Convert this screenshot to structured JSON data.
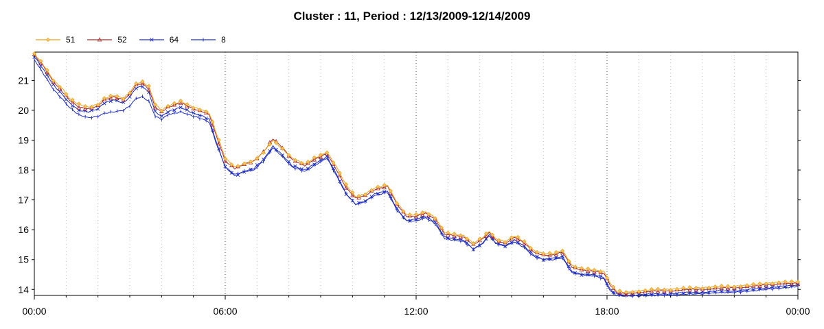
{
  "chart_data": {
    "type": "line",
    "title": "Cluster : 11, Period : 12/13/2009-12/14/2009",
    "xlabel": "",
    "ylabel": "",
    "x_ticks": [
      "00:00",
      "06:00",
      "12:00",
      "18:00",
      "00:00"
    ],
    "y_ticks": [
      "14",
      "15",
      "16",
      "17",
      "18",
      "19",
      "20",
      "21"
    ],
    "xlim": [
      "12/13/2009 00:00",
      "12/14/2009 00:00"
    ],
    "ylim": [
      13.8,
      21.95
    ],
    "grid": {
      "major_x_every_hours": 6,
      "minor_x_every_hours": 1,
      "horizontal": false
    },
    "legend": "top-left",
    "x_unit": "hours since 12/13/2009 00:00",
    "series": [
      {
        "name": "51",
        "color": "#E8A21F",
        "marker": "diamond",
        "points": [
          [
            0,
            21.9
          ],
          [
            0.3,
            21.5
          ],
          [
            0.6,
            21.0
          ],
          [
            0.9,
            20.7
          ],
          [
            1.1,
            20.4
          ],
          [
            1.4,
            20.2
          ],
          [
            1.7,
            20.1
          ],
          [
            2.0,
            20.2
          ],
          [
            2.2,
            20.4
          ],
          [
            2.5,
            20.5
          ],
          [
            2.8,
            20.4
          ],
          [
            3.0,
            20.6
          ],
          [
            3.2,
            20.9
          ],
          [
            3.4,
            20.95
          ],
          [
            3.6,
            20.8
          ],
          [
            3.8,
            20.2
          ],
          [
            4.0,
            20.0
          ],
          [
            4.2,
            20.15
          ],
          [
            4.6,
            20.3
          ],
          [
            5.0,
            20.1
          ],
          [
            5.3,
            20.0
          ],
          [
            5.5,
            19.9
          ],
          [
            5.7,
            19.3
          ],
          [
            6.0,
            18.4
          ],
          [
            6.3,
            18.1
          ],
          [
            6.6,
            18.2
          ],
          [
            6.9,
            18.3
          ],
          [
            7.2,
            18.6
          ],
          [
            7.5,
            19.0
          ],
          [
            7.8,
            18.7
          ],
          [
            8.1,
            18.4
          ],
          [
            8.5,
            18.2
          ],
          [
            8.8,
            18.4
          ],
          [
            9.2,
            18.6
          ],
          [
            9.5,
            18.1
          ],
          [
            9.8,
            17.5
          ],
          [
            10.1,
            17.1
          ],
          [
            10.4,
            17.2
          ],
          [
            10.7,
            17.4
          ],
          [
            11.1,
            17.5
          ],
          [
            11.4,
            16.9
          ],
          [
            11.7,
            16.5
          ],
          [
            12.0,
            16.5
          ],
          [
            12.3,
            16.6
          ],
          [
            12.6,
            16.4
          ],
          [
            12.9,
            15.9
          ],
          [
            13.2,
            15.85
          ],
          [
            13.5,
            15.8
          ],
          [
            13.8,
            15.55
          ],
          [
            14.1,
            15.75
          ],
          [
            14.3,
            15.95
          ],
          [
            14.5,
            15.7
          ],
          [
            14.8,
            15.6
          ],
          [
            15.1,
            15.8
          ],
          [
            15.4,
            15.6
          ],
          [
            15.7,
            15.3
          ],
          [
            16.0,
            15.2
          ],
          [
            16.3,
            15.2
          ],
          [
            16.6,
            15.3
          ],
          [
            16.9,
            14.8
          ],
          [
            17.2,
            14.7
          ],
          [
            17.6,
            14.65
          ],
          [
            17.9,
            14.6
          ],
          [
            18.1,
            14.2
          ],
          [
            18.3,
            13.95
          ],
          [
            18.6,
            13.9
          ],
          [
            19.0,
            13.95
          ],
          [
            19.5,
            14.0
          ],
          [
            20.0,
            14.0
          ],
          [
            20.5,
            14.05
          ],
          [
            21.0,
            14.05
          ],
          [
            21.5,
            14.1
          ],
          [
            22.0,
            14.1
          ],
          [
            22.5,
            14.15
          ],
          [
            23.0,
            14.2
          ],
          [
            23.5,
            14.25
          ],
          [
            24.0,
            14.25
          ]
        ]
      },
      {
        "name": "52",
        "color": "#A52A2A",
        "marker": "triangle",
        "points": [
          [
            0,
            21.85
          ],
          [
            0.3,
            21.45
          ],
          [
            0.6,
            20.95
          ],
          [
            0.9,
            20.6
          ],
          [
            1.1,
            20.35
          ],
          [
            1.4,
            20.1
          ],
          [
            1.7,
            20.05
          ],
          [
            2.0,
            20.15
          ],
          [
            2.2,
            20.35
          ],
          [
            2.5,
            20.45
          ],
          [
            2.8,
            20.35
          ],
          [
            3.0,
            20.55
          ],
          [
            3.2,
            20.85
          ],
          [
            3.4,
            20.9
          ],
          [
            3.6,
            20.7
          ],
          [
            3.8,
            20.1
          ],
          [
            4.0,
            19.95
          ],
          [
            4.2,
            20.1
          ],
          [
            4.6,
            20.25
          ],
          [
            5.0,
            20.05
          ],
          [
            5.3,
            19.95
          ],
          [
            5.5,
            19.85
          ],
          [
            5.7,
            19.2
          ],
          [
            6.0,
            18.3
          ],
          [
            6.3,
            18.05
          ],
          [
            6.6,
            18.2
          ],
          [
            6.9,
            18.3
          ],
          [
            7.2,
            18.6
          ],
          [
            7.5,
            19.05
          ],
          [
            7.8,
            18.75
          ],
          [
            8.1,
            18.35
          ],
          [
            8.5,
            18.15
          ],
          [
            8.8,
            18.35
          ],
          [
            9.2,
            18.55
          ],
          [
            9.5,
            18.0
          ],
          [
            9.8,
            17.4
          ],
          [
            10.1,
            17.05
          ],
          [
            10.4,
            17.15
          ],
          [
            10.7,
            17.35
          ],
          [
            11.1,
            17.45
          ],
          [
            11.4,
            16.85
          ],
          [
            11.7,
            16.45
          ],
          [
            12.0,
            16.45
          ],
          [
            12.3,
            16.55
          ],
          [
            12.6,
            16.35
          ],
          [
            12.9,
            15.85
          ],
          [
            13.2,
            15.8
          ],
          [
            13.5,
            15.75
          ],
          [
            13.8,
            15.5
          ],
          [
            14.1,
            15.7
          ],
          [
            14.3,
            15.9
          ],
          [
            14.5,
            15.65
          ],
          [
            14.8,
            15.55
          ],
          [
            15.1,
            15.75
          ],
          [
            15.4,
            15.55
          ],
          [
            15.7,
            15.25
          ],
          [
            16.0,
            15.15
          ],
          [
            16.3,
            15.15
          ],
          [
            16.6,
            15.25
          ],
          [
            16.9,
            14.75
          ],
          [
            17.2,
            14.65
          ],
          [
            17.6,
            14.6
          ],
          [
            17.9,
            14.55
          ],
          [
            18.1,
            14.15
          ],
          [
            18.3,
            13.9
          ],
          [
            18.6,
            13.85
          ],
          [
            19.0,
            13.9
          ],
          [
            19.5,
            13.95
          ],
          [
            20.0,
            13.95
          ],
          [
            20.5,
            14.0
          ],
          [
            21.0,
            14.0
          ],
          [
            21.5,
            14.05
          ],
          [
            22.0,
            14.05
          ],
          [
            22.5,
            14.1
          ],
          [
            23.0,
            14.15
          ],
          [
            23.5,
            14.2
          ],
          [
            24.0,
            14.2
          ]
        ]
      },
      {
        "name": "64",
        "color": "#1E2DBE",
        "marker": "x",
        "points": [
          [
            0,
            21.8
          ],
          [
            0.3,
            21.35
          ],
          [
            0.6,
            20.85
          ],
          [
            0.9,
            20.5
          ],
          [
            1.1,
            20.25
          ],
          [
            1.4,
            20.0
          ],
          [
            1.7,
            19.95
          ],
          [
            2.0,
            20.05
          ],
          [
            2.2,
            20.25
          ],
          [
            2.5,
            20.35
          ],
          [
            2.8,
            20.25
          ],
          [
            3.0,
            20.45
          ],
          [
            3.2,
            20.75
          ],
          [
            3.4,
            20.8
          ],
          [
            3.6,
            20.6
          ],
          [
            3.8,
            19.95
          ],
          [
            4.0,
            19.8
          ],
          [
            4.2,
            19.95
          ],
          [
            4.6,
            20.1
          ],
          [
            5.0,
            19.9
          ],
          [
            5.3,
            19.8
          ],
          [
            5.5,
            19.7
          ],
          [
            5.7,
            19.0
          ],
          [
            6.0,
            18.1
          ],
          [
            6.3,
            17.8
          ],
          [
            6.6,
            17.95
          ],
          [
            6.9,
            18.05
          ],
          [
            7.2,
            18.35
          ],
          [
            7.5,
            18.8
          ],
          [
            7.8,
            18.5
          ],
          [
            8.1,
            18.15
          ],
          [
            8.5,
            18.0
          ],
          [
            8.8,
            18.2
          ],
          [
            9.2,
            18.45
          ],
          [
            9.5,
            17.85
          ],
          [
            9.8,
            17.2
          ],
          [
            10.1,
            16.85
          ],
          [
            10.4,
            16.95
          ],
          [
            10.7,
            17.2
          ],
          [
            11.1,
            17.3
          ],
          [
            11.4,
            16.7
          ],
          [
            11.7,
            16.3
          ],
          [
            12.0,
            16.35
          ],
          [
            12.3,
            16.45
          ],
          [
            12.6,
            16.25
          ],
          [
            12.9,
            15.75
          ],
          [
            13.2,
            15.7
          ],
          [
            13.5,
            15.65
          ],
          [
            13.8,
            15.35
          ],
          [
            14.1,
            15.55
          ],
          [
            14.3,
            15.85
          ],
          [
            14.5,
            15.55
          ],
          [
            14.8,
            15.45
          ],
          [
            15.1,
            15.65
          ],
          [
            15.4,
            15.45
          ],
          [
            15.7,
            15.15
          ],
          [
            16.0,
            15.0
          ],
          [
            16.3,
            15.05
          ],
          [
            16.6,
            15.1
          ],
          [
            16.9,
            14.6
          ],
          [
            17.2,
            14.5
          ],
          [
            17.6,
            14.5
          ],
          [
            17.9,
            14.4
          ],
          [
            18.1,
            14.0
          ],
          [
            18.3,
            13.85
          ],
          [
            18.6,
            13.8
          ],
          [
            19.0,
            13.82
          ],
          [
            19.5,
            13.85
          ],
          [
            20.0,
            13.85
          ],
          [
            20.5,
            13.9
          ],
          [
            21.0,
            13.9
          ],
          [
            21.5,
            13.95
          ],
          [
            22.0,
            13.95
          ],
          [
            22.5,
            14.0
          ],
          [
            23.0,
            14.05
          ],
          [
            23.5,
            14.1
          ],
          [
            24.0,
            14.15
          ]
        ]
      },
      {
        "name": "8",
        "color": "#1E2DBE",
        "marker": "vline",
        "points": [
          [
            0,
            21.7
          ],
          [
            0.3,
            21.2
          ],
          [
            0.6,
            20.7
          ],
          [
            0.9,
            20.35
          ],
          [
            1.1,
            20.1
          ],
          [
            1.4,
            19.85
          ],
          [
            1.7,
            19.75
          ],
          [
            2.0,
            19.8
          ],
          [
            2.2,
            19.9
          ],
          [
            2.5,
            19.95
          ],
          [
            2.8,
            20.0
          ],
          [
            3.0,
            20.15
          ],
          [
            3.2,
            20.4
          ],
          [
            3.4,
            20.45
          ],
          [
            3.6,
            20.3
          ],
          [
            3.8,
            19.8
          ],
          [
            4.0,
            19.7
          ],
          [
            4.2,
            19.85
          ],
          [
            4.6,
            19.95
          ],
          [
            5.0,
            19.8
          ],
          [
            5.3,
            19.7
          ],
          [
            5.5,
            19.6
          ],
          [
            5.7,
            18.95
          ],
          [
            6.0,
            18.1
          ],
          [
            6.3,
            17.85
          ],
          [
            6.6,
            17.95
          ],
          [
            6.9,
            18.0
          ],
          [
            7.2,
            18.3
          ],
          [
            7.5,
            18.75
          ],
          [
            7.8,
            18.45
          ],
          [
            8.1,
            18.1
          ],
          [
            8.5,
            17.95
          ],
          [
            8.8,
            18.15
          ],
          [
            9.2,
            18.4
          ],
          [
            9.5,
            17.8
          ],
          [
            9.8,
            17.2
          ],
          [
            10.1,
            16.85
          ],
          [
            10.4,
            16.95
          ],
          [
            10.7,
            17.15
          ],
          [
            11.1,
            17.25
          ],
          [
            11.4,
            16.65
          ],
          [
            11.7,
            16.3
          ],
          [
            12.0,
            16.3
          ],
          [
            12.3,
            16.4
          ],
          [
            12.6,
            16.2
          ],
          [
            12.9,
            15.7
          ],
          [
            13.2,
            15.65
          ],
          [
            13.5,
            15.6
          ],
          [
            13.8,
            15.35
          ],
          [
            14.1,
            15.55
          ],
          [
            14.3,
            15.8
          ],
          [
            14.5,
            15.55
          ],
          [
            14.8,
            15.45
          ],
          [
            15.1,
            15.6
          ],
          [
            15.4,
            15.4
          ],
          [
            15.7,
            15.1
          ],
          [
            16.0,
            15.0
          ],
          [
            16.3,
            15.0
          ],
          [
            16.6,
            15.05
          ],
          [
            16.9,
            14.55
          ],
          [
            17.2,
            14.5
          ],
          [
            17.6,
            14.45
          ],
          [
            17.9,
            14.35
          ],
          [
            18.1,
            13.95
          ],
          [
            18.3,
            13.8
          ],
          [
            18.6,
            13.78
          ],
          [
            19.0,
            13.78
          ],
          [
            19.5,
            13.8
          ],
          [
            20.0,
            13.8
          ],
          [
            20.5,
            13.85
          ],
          [
            21.0,
            13.85
          ],
          [
            21.5,
            13.9
          ],
          [
            22.0,
            13.9
          ],
          [
            22.5,
            13.95
          ],
          [
            23.0,
            14.0
          ],
          [
            23.5,
            14.05
          ],
          [
            24.0,
            14.1
          ]
        ]
      }
    ]
  }
}
